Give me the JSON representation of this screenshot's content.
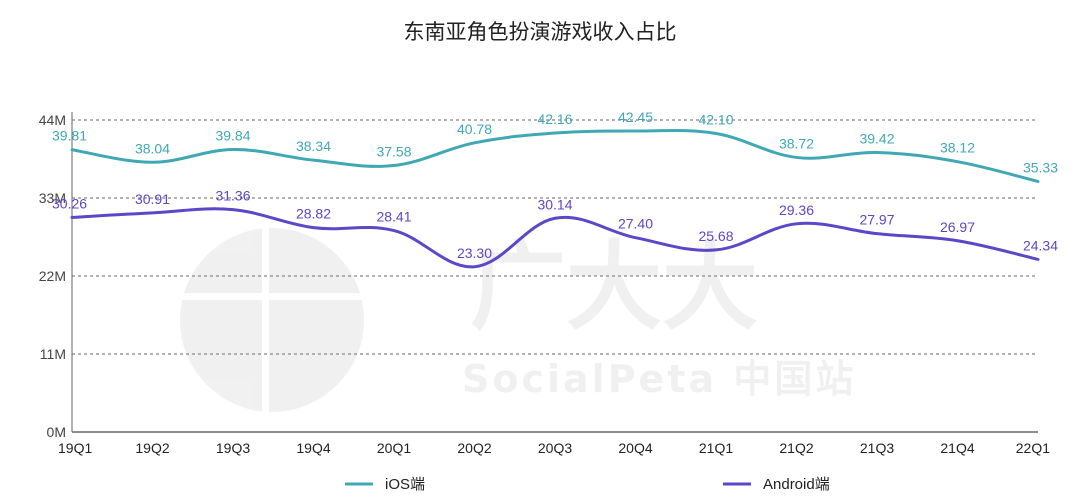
{
  "chart_data": {
    "type": "line",
    "title": "东南亚角色扮演游戏收入占比",
    "categories": [
      "19Q1",
      "19Q2",
      "19Q3",
      "19Q4",
      "20Q1",
      "20Q2",
      "20Q3",
      "20Q4",
      "21Q1",
      "21Q2",
      "21Q3",
      "21Q4",
      "22Q1"
    ],
    "series": [
      {
        "name": "iOS端",
        "color": "#40A8B4",
        "values": [
          39.81,
          38.04,
          39.84,
          38.34,
          37.58,
          40.78,
          42.16,
          42.45,
          42.1,
          38.72,
          39.42,
          38.12,
          35.33
        ]
      },
      {
        "name": "Android端",
        "color": "#5A48C8",
        "values": [
          30.26,
          30.91,
          31.36,
          28.82,
          28.41,
          23.3,
          30.14,
          27.4,
          25.68,
          29.36,
          27.97,
          26.97,
          24.34
        ]
      }
    ],
    "y_ticks": [
      {
        "value": 0,
        "label": "0M"
      },
      {
        "value": 11,
        "label": "11M"
      },
      {
        "value": 22,
        "label": "22M"
      },
      {
        "value": 33,
        "label": "33M"
      },
      {
        "value": 44,
        "label": "44M"
      }
    ],
    "ylim": [
      0,
      44
    ],
    "xlabel": "",
    "ylabel": "",
    "grid": true,
    "legend_position": "bottom",
    "watermark": "广大大 SocialPeta 中国站"
  }
}
